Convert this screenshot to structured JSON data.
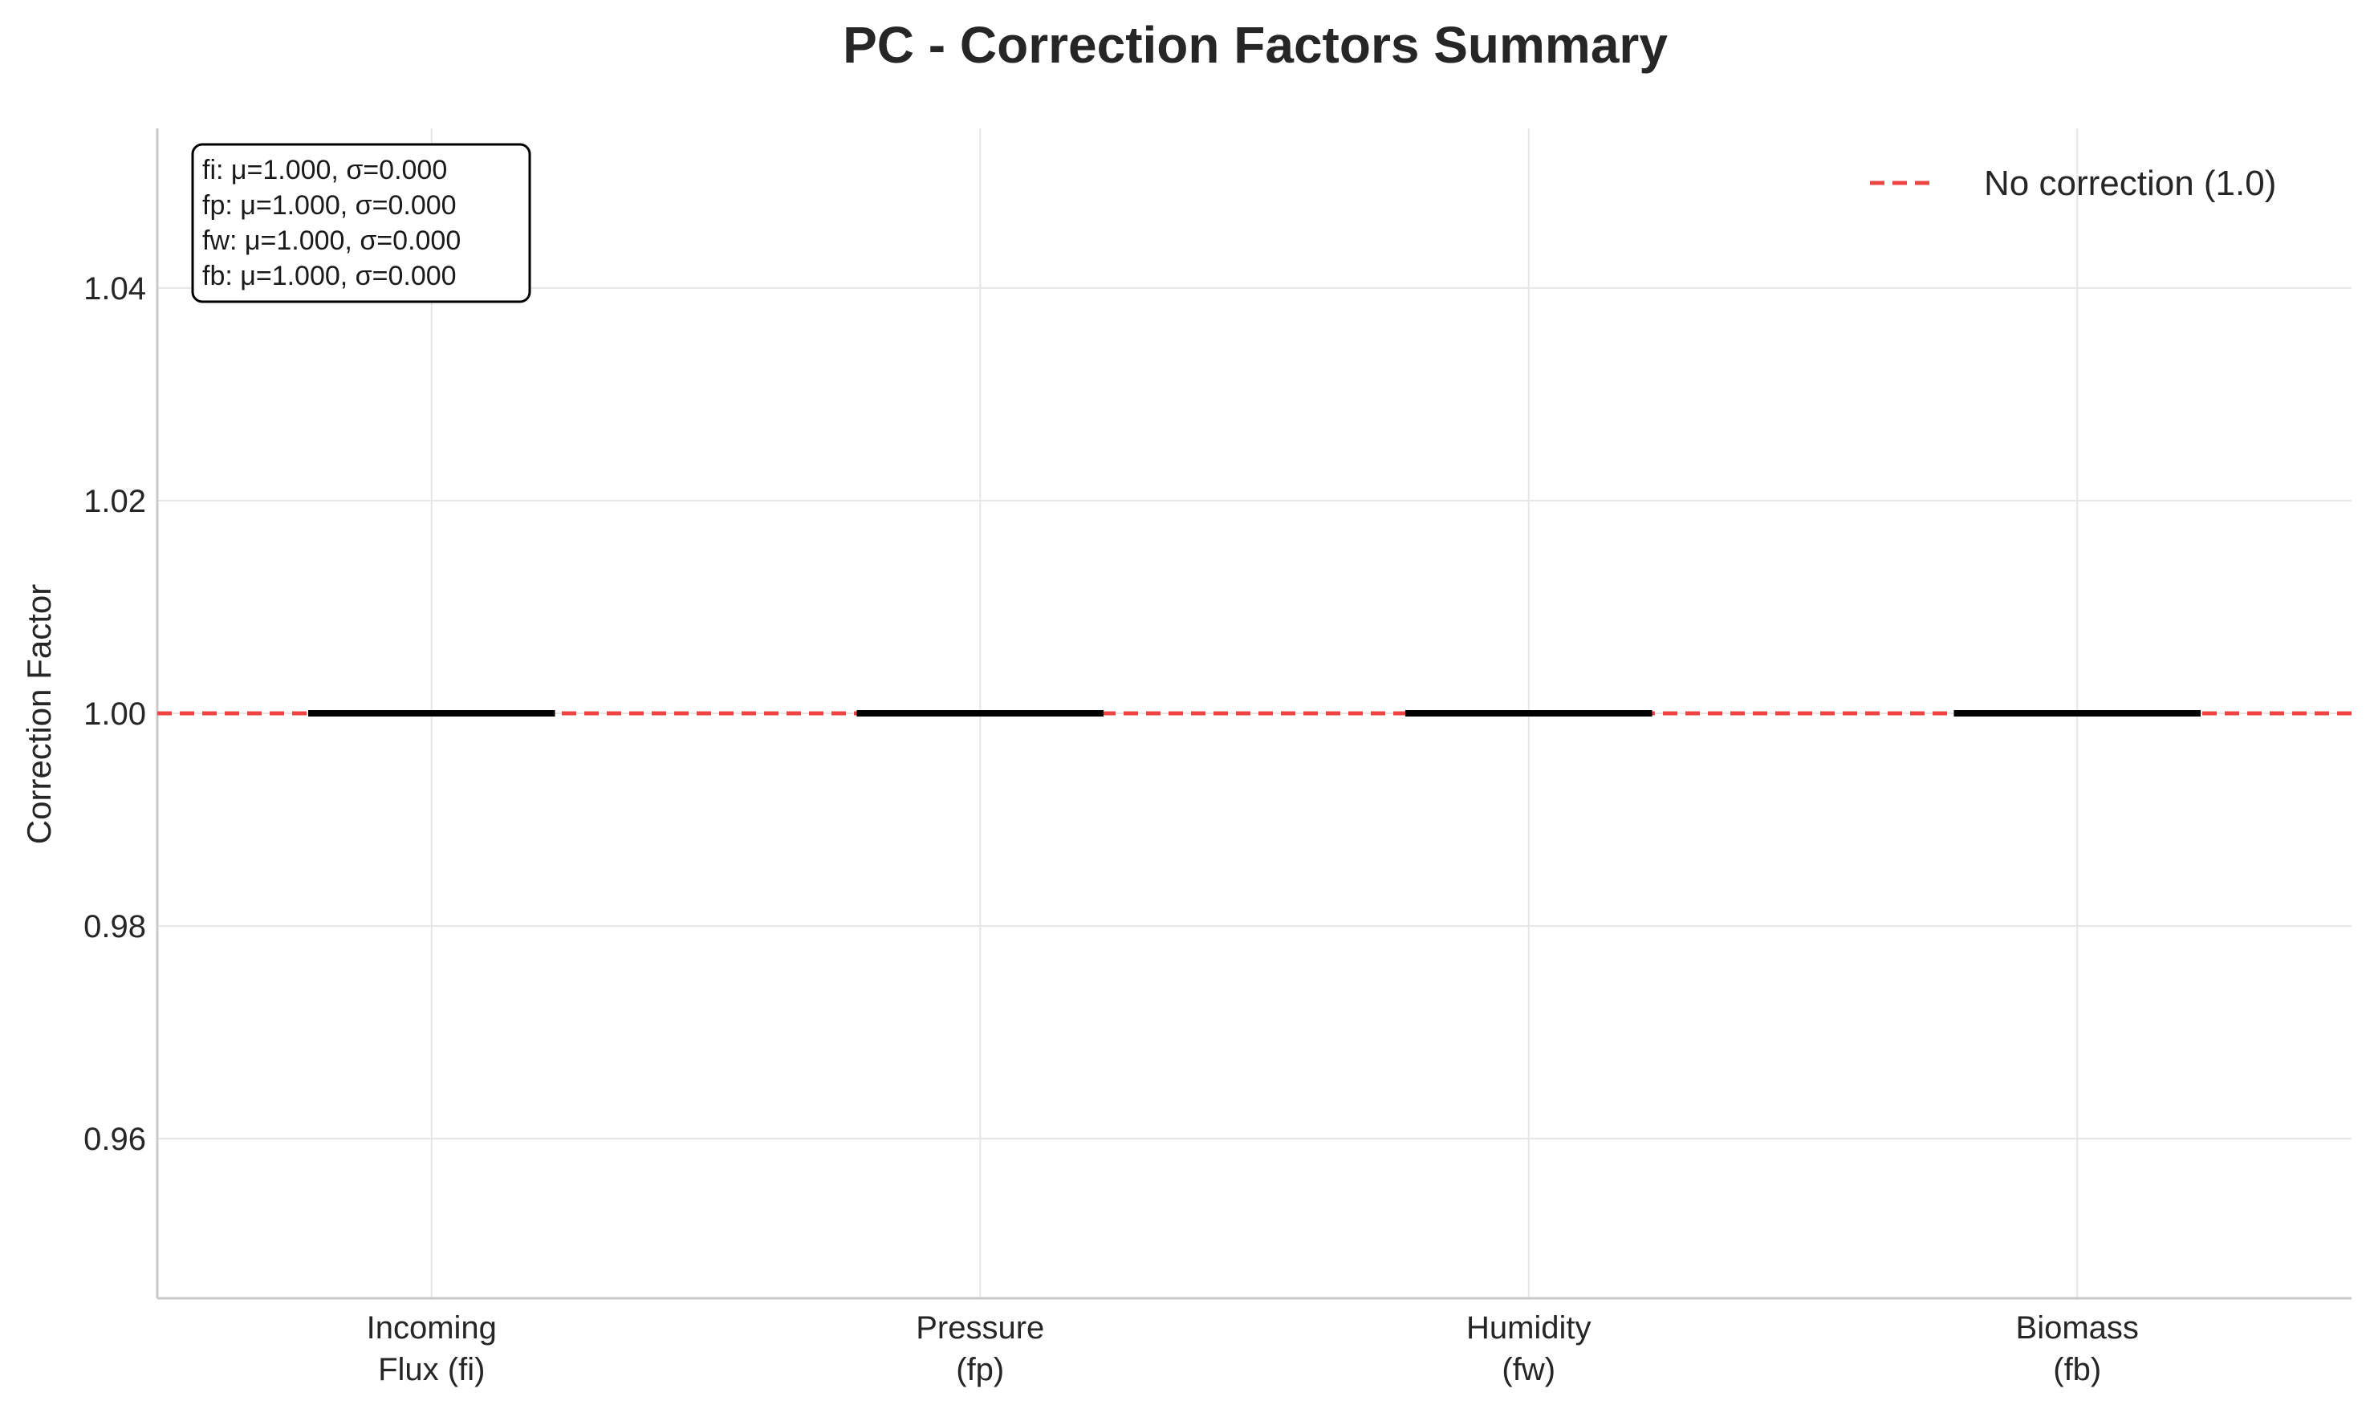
{
  "chart_data": {
    "type": "box",
    "title": "PC - Correction Factors Summary",
    "ylabel": "Correction Factor",
    "xlabel": "",
    "ylim": [
      0.945,
      1.055
    ],
    "yticks": [
      "0.96",
      "0.98",
      "1.00",
      "1.02",
      "1.04"
    ],
    "grid": true,
    "categories": [
      {
        "line1": "Incoming",
        "line2": "Flux (fi)"
      },
      {
        "line1": "Pressure",
        "line2": "(fp)"
      },
      {
        "line1": "Humidity",
        "line2": "(fw)"
      },
      {
        "line1": "Biomass",
        "line2": "(fb)"
      }
    ],
    "values": [
      1.0,
      1.0,
      1.0,
      1.0
    ],
    "reference_line": {
      "value": 1.0,
      "label": "No correction (1.0)",
      "color": "#ef4444"
    },
    "stats_box": [
      "fi: μ=1.000, σ=0.000",
      "fp: μ=1.000, σ=0.000",
      "fw: μ=1.000, σ=0.000",
      "fb: μ=1.000, σ=0.000"
    ],
    "legend_position": "top-right",
    "colors": {
      "median": "#000000",
      "grid": "#e6e6e6",
      "axis": "#c8c8c8"
    }
  }
}
